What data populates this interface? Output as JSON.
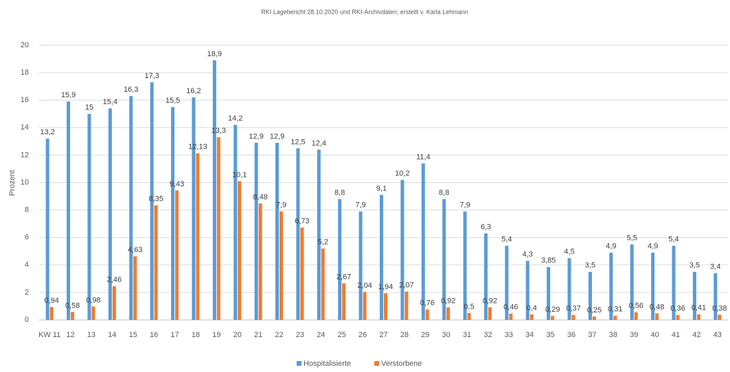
{
  "chart_data": {
    "type": "bar",
    "title": "RKI Lagebericht 28.10.2020 und RKI-Archivdaten; erstellt v. Karla Lehmann",
    "y_label": "Prozent",
    "categories": [
      "KW 11",
      "12",
      "13",
      "14",
      "15",
      "16",
      "17",
      "18",
      "19",
      "20",
      "21",
      "22",
      "23",
      "24",
      "25",
      "26",
      "27",
      "28",
      "29",
      "30",
      "31",
      "32",
      "33",
      "34",
      "35",
      "36",
      "37",
      "38",
      "39",
      "40",
      "41",
      "42",
      "43"
    ],
    "series": [
      {
        "name": "Hospitalisierte",
        "color": "#5b9bd5",
        "values": [
          13.2,
          15.9,
          15,
          15.4,
          16.3,
          17.3,
          15.5,
          16.2,
          18.9,
          14.2,
          12.9,
          12.9,
          12.5,
          12.4,
          8.8,
          7.9,
          9.1,
          10.2,
          11.4,
          8.8,
          7.9,
          6.3,
          5.4,
          4.3,
          3.85,
          4.5,
          3.5,
          4.9,
          5.5,
          4.9,
          5.4,
          3.5,
          3.4
        ],
        "value_labels": [
          "13,2",
          "15,9",
          "15",
          "15,4",
          "16,3",
          "17,3",
          "15,5",
          "16,2",
          "18,9",
          "14,2",
          "12,9",
          "12,9",
          "12,5",
          "12,4",
          "8,8",
          "7,9",
          "9,1",
          "10,2",
          "11,4",
          "8,8",
          "7,9",
          "6,3",
          "5,4",
          "4,3",
          "3,85",
          "4,5",
          "3,5",
          "4,9",
          "5,5",
          "4,9",
          "5,4",
          "3,5",
          "3,4"
        ]
      },
      {
        "name": "Verstorbene",
        "color": "#ed7d31",
        "values": [
          0.94,
          0.58,
          0.98,
          2.46,
          4.63,
          8.35,
          9.43,
          12.13,
          13.3,
          10.1,
          8.48,
          7.9,
          6.73,
          5.2,
          2.67,
          2.04,
          1.94,
          2.07,
          0.76,
          0.92,
          0.5,
          0.92,
          0.46,
          0.4,
          0.29,
          0.37,
          0.25,
          0.31,
          0.56,
          0.48,
          0.36,
          0.41,
          0.38
        ],
        "value_labels": [
          "0,94",
          "0,58",
          "0,98",
          "2,46",
          "4,63",
          "8,35",
          "9,43",
          "12,13",
          "13,3",
          "10,1",
          "8,48",
          "7,9",
          "6,73",
          "5,2",
          "2,67",
          "2,04",
          "1,94",
          "2,07",
          "0,76",
          "0,92",
          "0,5",
          "0,92",
          "0,46",
          "0,4",
          "0,29",
          "0,37",
          "0,25",
          "0,31",
          "0,56",
          "0,48",
          "0,36",
          "0,41",
          "0,38"
        ]
      }
    ],
    "ylim": [
      0,
      20
    ],
    "yticks": [
      0,
      2,
      4,
      6,
      8,
      10,
      12,
      14,
      16,
      18,
      20
    ],
    "grid": true,
    "legend": "bottom"
  }
}
